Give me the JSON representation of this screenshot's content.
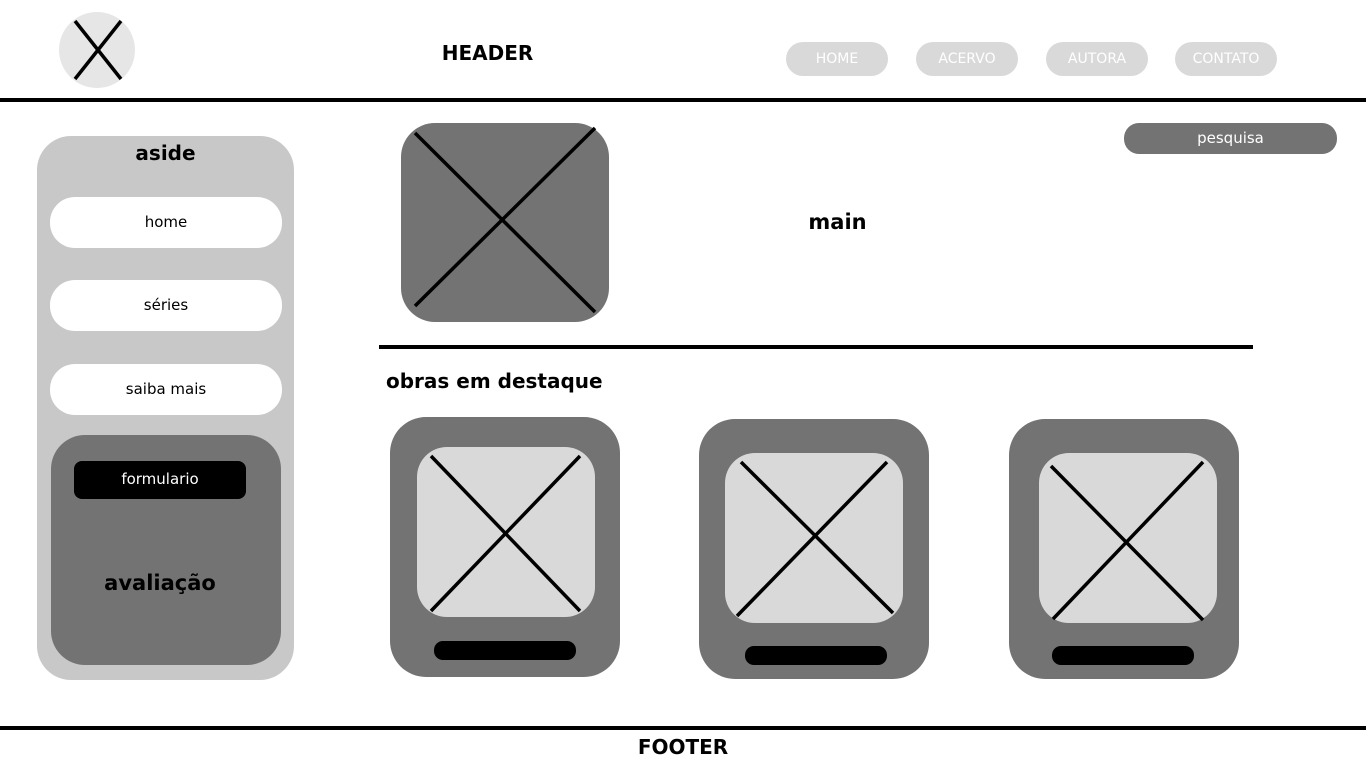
{
  "header": {
    "title": "HEADER",
    "logo_icon": "image-placeholder-icon",
    "nav": [
      {
        "label": "HOME"
      },
      {
        "label": "ACERVO"
      },
      {
        "label": "AUTORA"
      },
      {
        "label": "CONTATO"
      }
    ]
  },
  "aside": {
    "title": "aside",
    "items": [
      {
        "label": "home"
      },
      {
        "label": "séries"
      },
      {
        "label": "saiba mais"
      }
    ],
    "rating": {
      "form_button": "formulario",
      "title": "avaliação"
    }
  },
  "main": {
    "title": "main",
    "search_button": "pesquisa",
    "featured_title": "obras em destaque",
    "featured_count": 3
  },
  "footer": {
    "title": "FOOTER"
  },
  "colors": {
    "dark_gray": "#737373",
    "mid_gray": "#c8c8c8",
    "light_gray": "#d9d9d9",
    "black": "#000000",
    "white": "#ffffff"
  }
}
